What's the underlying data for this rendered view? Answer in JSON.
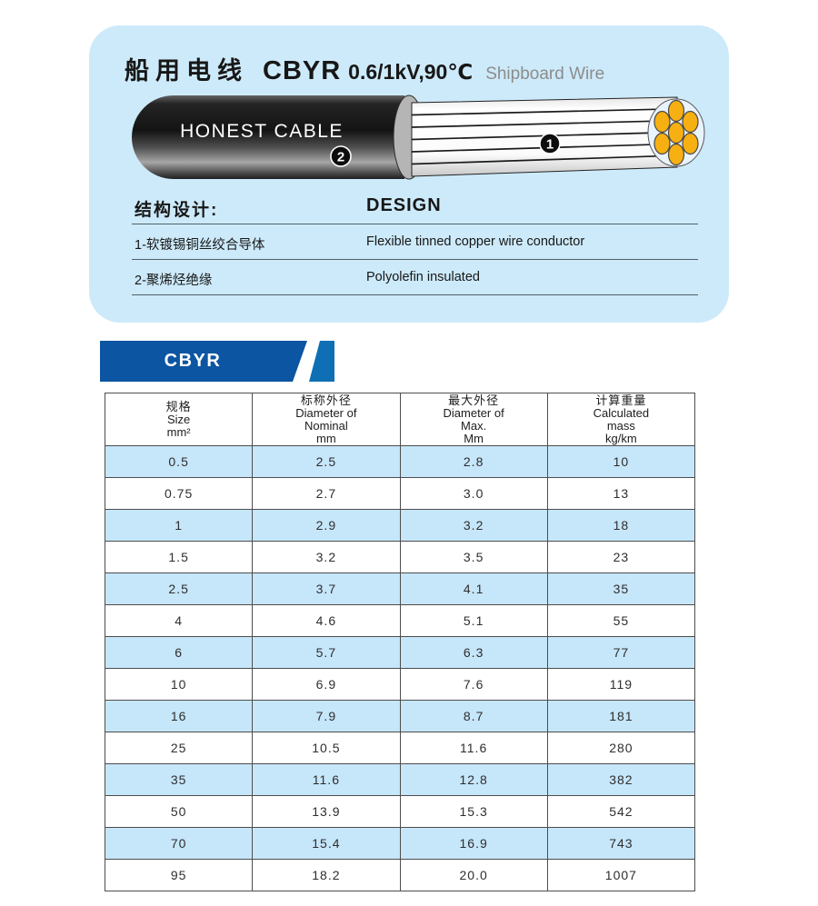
{
  "colors": {
    "panel_bg": "#cdeafa",
    "table_row_alt": "#c6e6fa",
    "banner_dark": "#0b55a2",
    "banner_light": "#0f6fb4",
    "conductor_orange": "#f7b012",
    "subtitle_gray": "#8c8c8c"
  },
  "header": {
    "title_cn": "船用电线",
    "model": "CBYR",
    "rating": "0.6/1kV,90℃",
    "subtitle": "Shipboard Wire"
  },
  "cable": {
    "brand_label": "HONEST CABLE",
    "marker_conductor": "1",
    "marker_insulation": "2"
  },
  "design": {
    "heading_cn": "结构设计:",
    "heading_en": "DESIGN",
    "rows": [
      {
        "cn": "1-软镀锡铜丝绞合导体",
        "en": "Flexible tinned copper wire conductor"
      },
      {
        "cn": "2-聚烯烃绝缘",
        "en": "Polyolefin insulated"
      }
    ]
  },
  "banner": {
    "label": "CBYR"
  },
  "table": {
    "columns": [
      [
        "规格",
        "Size",
        "mm²"
      ],
      [
        "标称外径",
        "Diameter of",
        "Nominal",
        "mm"
      ],
      [
        "最大外径",
        "Diameter of",
        "Max.",
        "Mm"
      ],
      [
        "计算重量",
        "Calculated",
        "mass",
        "kg/km"
      ]
    ],
    "rows": [
      [
        "0.5",
        "2.5",
        "2.8",
        "10"
      ],
      [
        "0.75",
        "2.7",
        "3.0",
        "13"
      ],
      [
        "1",
        "2.9",
        "3.2",
        "18"
      ],
      [
        "1.5",
        "3.2",
        "3.5",
        "23"
      ],
      [
        "2.5",
        "3.7",
        "4.1",
        "35"
      ],
      [
        "4",
        "4.6",
        "5.1",
        "55"
      ],
      [
        "6",
        "5.7",
        "6.3",
        "77"
      ],
      [
        "10",
        "6.9",
        "7.6",
        "119"
      ],
      [
        "16",
        "7.9",
        "8.7",
        "181"
      ],
      [
        "25",
        "10.5",
        "11.6",
        "280"
      ],
      [
        "35",
        "11.6",
        "12.8",
        "382"
      ],
      [
        "50",
        "13.9",
        "15.3",
        "542"
      ],
      [
        "70",
        "15.4",
        "16.9",
        "743"
      ],
      [
        "95",
        "18.2",
        "20.0",
        "1007"
      ]
    ]
  }
}
